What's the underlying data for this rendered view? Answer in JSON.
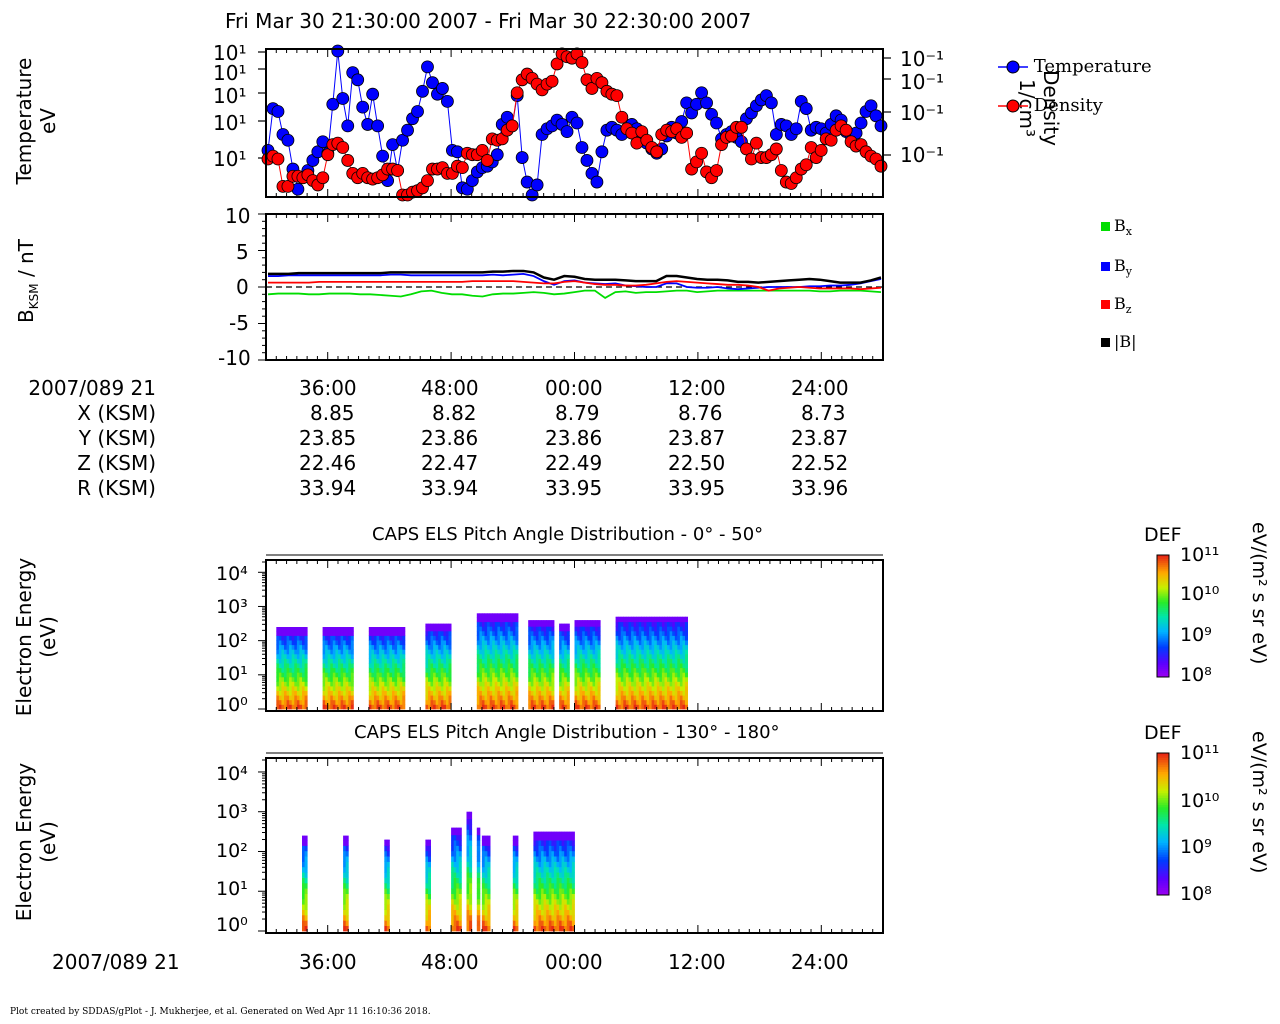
{
  "title": "Fri Mar 30 21:30:00 2007 - Fri Mar 30 22:30:00 2007",
  "footer": "Plot created by SDDAS/gPlot - J. Mukherjee, et al.  Generated on Wed Apr 11 16:10:36 2018.",
  "panel1": {
    "ylabel_line1": "Temperature",
    "ylabel_line2": "eV",
    "y2label_line1": "Density",
    "y2label_line2": "1/cm³",
    "left_ticks": [
      "10¹",
      "10¹",
      "10¹",
      "10¹",
      "10¹"
    ],
    "right_ticks": [
      "10⁻¹",
      "10⁻¹",
      "10⁻¹",
      "10⁻¹"
    ],
    "legend": [
      {
        "name": "Temperature",
        "color": "#0000ff"
      },
      {
        "name": "Density",
        "color": "#ff0000"
      }
    ]
  },
  "panel2": {
    "ylabel": "B",
    "ylabel_sub": "KSM",
    "ylabel_suffix": " / nT",
    "ticks": [
      "10",
      "5",
      "0",
      "-5",
      "-10"
    ],
    "legend": [
      {
        "name": "B",
        "sub": "x",
        "color": "#00dd00"
      },
      {
        "name": "B",
        "sub": "y",
        "color": "#0000ff"
      },
      {
        "name": "B",
        "sub": "z",
        "color": "#ff0000"
      },
      {
        "name": "|B|",
        "sub": "",
        "color": "#000000"
      }
    ]
  },
  "ephemeris": {
    "row_labels": [
      "2007/089 21",
      "X (KSM)",
      "Y (KSM)",
      "Z (KSM)",
      "R (KSM)"
    ],
    "times": [
      "36:00",
      "48:00",
      "00:00",
      "12:00",
      "24:00"
    ],
    "X": [
      "8.85",
      "8.82",
      "8.79",
      "8.76",
      "8.73"
    ],
    "Y": [
      "23.85",
      "23.86",
      "23.86",
      "23.87",
      "23.87"
    ],
    "Z": [
      "22.46",
      "22.47",
      "22.49",
      "22.50",
      "22.52"
    ],
    "R": [
      "33.94",
      "33.94",
      "33.95",
      "33.95",
      "33.96"
    ]
  },
  "spec1": {
    "title": "CAPS ELS Pitch Angle Distribution - 0° - 50°",
    "ylabel_line1": "Electron Energy",
    "ylabel_line2": "(eV)",
    "ticks": [
      "10⁴",
      "10³",
      "10²",
      "10¹",
      "10⁰"
    ]
  },
  "spec2": {
    "title": "CAPS ELS Pitch Angle Distribution - 130° - 180°",
    "ylabel_line1": "Electron Energy",
    "ylabel_line2": "(eV)",
    "ticks": [
      "10⁴",
      "10³",
      "10²",
      "10¹",
      "10⁰"
    ]
  },
  "colorbar": {
    "title": "DEF",
    "units": "eV/(m² s sr eV)",
    "ticks": [
      "10¹¹",
      "10¹⁰",
      "10⁹",
      "10⁸"
    ]
  },
  "bottom_axis": {
    "row_label": "2007/089 21",
    "times": [
      "36:00",
      "48:00",
      "00:00",
      "12:00",
      "24:00"
    ]
  },
  "chart_data": [
    {
      "type": "line",
      "title": "",
      "xlabel": "",
      "ylabel": "Temperature eV",
      "y2label": "Density 1/cm³",
      "x_axis": "time, Fri Mar 30 2007, 21:30:00 - 22:30:00 (one point per minute)",
      "series": [
        {
          "name": "Temperature",
          "axis": "left",
          "color": "#0000ff",
          "values": [
            0.31,
            0.6,
            0.58,
            0.42,
            0.38,
            0.18,
            0.04,
            0.12,
            0.17,
            0.24,
            0.3,
            0.37,
            0.29,
            0.63,
            1.0,
            0.67,
            0.48,
            0.85,
            0.8,
            0.61,
            0.49,
            0.7,
            0.48,
            0.27,
            0.1,
            0.35,
            0.17,
            0.38,
            0.45,
            0.53,
            0.58,
            0.72,
            0.89,
            0.78,
            0.7,
            0.74,
            0.65,
            0.31,
            0.3,
            0.05,
            0.04,
            0.1,
            0.16,
            0.19,
            0.2,
            0.23,
            0.28,
            0.49,
            0.54,
            0.48,
            0.69,
            0.26,
            0.09,
            0.0,
            0.07,
            0.42,
            0.46,
            0.48,
            0.52,
            0.49,
            0.44,
            0.54,
            0.5,
            0.33,
            0.24,
            0.15,
            0.09,
            0.3,
            0.45,
            0.47,
            0.45,
            0.42,
            0.46,
            0.49,
            0.46,
            0.43,
            0.36,
            0.32,
            0.29,
            0.32,
            0.41,
            0.47,
            0.43,
            0.51,
            0.64,
            0.57,
            0.63,
            0.71,
            0.64,
            0.56,
            0.5,
            0.39,
            0.42,
            0.44,
            0.4,
            0.37,
            0.53,
            0.57,
            0.62,
            0.66,
            0.69,
            0.64,
            0.42,
            0.49,
            0.48,
            0.42,
            0.46,
            0.65,
            0.6,
            0.45,
            0.47,
            0.46,
            0.43,
            0.49,
            0.55,
            0.52,
            0.44,
            0.41,
            0.43,
            0.5,
            0.58,
            0.62,
            0.55,
            0.48
          ]
        },
        {
          "name": "Density",
          "axis": "right",
          "color": "#ff0000",
          "values": [
            0.25,
            0.27,
            0.25,
            0.06,
            0.06,
            0.13,
            0.13,
            0.12,
            0.14,
            0.1,
            0.07,
            0.12,
            0.28,
            0.35,
            0.36,
            0.33,
            0.24,
            0.15,
            0.12,
            0.15,
            0.12,
            0.11,
            0.12,
            0.14,
            0.18,
            0.18,
            0.17,
            0.0,
            0.0,
            0.02,
            0.03,
            0.05,
            0.1,
            0.18,
            0.18,
            0.19,
            0.15,
            0.15,
            0.2,
            0.19,
            0.29,
            0.28,
            0.28,
            0.31,
            0.24,
            0.39,
            0.38,
            0.39,
            0.45,
            0.48,
            0.71,
            0.8,
            0.84,
            0.81,
            0.77,
            0.73,
            0.77,
            0.79,
            0.91,
            0.98,
            0.96,
            0.95,
            0.98,
            0.92,
            0.8,
            0.74,
            0.81,
            0.78,
            0.72,
            0.7,
            0.69,
            0.54,
            0.46,
            0.43,
            0.36,
            0.44,
            0.38,
            0.33,
            0.3,
            0.42,
            0.45,
            0.44,
            0.46,
            0.4,
            0.43,
            0.18,
            0.23,
            0.29,
            0.16,
            0.12,
            0.17,
            0.35,
            0.4,
            0.41,
            0.47,
            0.47,
            0.32,
            0.25,
            0.36,
            0.26,
            0.26,
            0.28,
            0.32,
            0.17,
            0.09,
            0.08,
            0.12,
            0.18,
            0.21,
            0.33,
            0.26,
            0.31,
            0.39,
            0.38,
            0.45,
            0.48,
            0.45,
            0.37,
            0.34,
            0.35,
            0.3,
            0.27,
            0.25,
            0.2
          ]
        }
      ]
    },
    {
      "type": "line",
      "title": "",
      "xlabel": "",
      "ylabel": "B_KSM / nT",
      "ylim": [
        -10,
        10
      ],
      "x_axis": "time, Fri Mar 30 2007, 21:30:00 - 22:30:00",
      "series": [
        {
          "name": "Bx",
          "color": "#00dd00",
          "values": [
            -1.0,
            -0.9,
            -0.9,
            -0.9,
            -1.0,
            -1.0,
            -0.9,
            -0.9,
            -0.9,
            -1.0,
            -1.0,
            -1.1,
            -1.2,
            -1.3,
            -1.0,
            -0.6,
            -0.5,
            -0.8,
            -1.0,
            -1.0,
            -1.2,
            -1.3,
            -1.0,
            -0.9,
            -0.9,
            -0.8,
            -0.7,
            -0.8,
            -1.0,
            -0.9,
            -0.7,
            -0.5,
            -0.5,
            -1.5,
            -0.7,
            -0.6,
            -0.8,
            -0.7,
            -0.7,
            -0.6,
            -0.5,
            -0.5,
            -0.7,
            -0.6,
            -0.5,
            -0.5,
            -0.5,
            -0.5,
            -0.5,
            -0.5,
            -0.5,
            -0.5,
            -0.5,
            -0.5,
            -0.6,
            -0.6,
            -0.5,
            -0.5,
            -0.5,
            -0.6,
            -0.7
          ]
        },
        {
          "name": "By",
          "color": "#0000ff",
          "values": [
            1.5,
            1.5,
            1.6,
            1.6,
            1.6,
            1.6,
            1.6,
            1.6,
            1.6,
            1.6,
            1.6,
            1.6,
            1.7,
            1.7,
            1.6,
            1.6,
            1.6,
            1.6,
            1.6,
            1.6,
            1.6,
            1.6,
            1.7,
            1.6,
            1.7,
            1.8,
            1.5,
            0.8,
            0.3,
            0.8,
            0.9,
            0.6,
            0.5,
            0.4,
            0.5,
            0.2,
            0.1,
            0.0,
            0.0,
            0.5,
            0.5,
            0.0,
            -0.1,
            -0.1,
            0.0,
            -0.2,
            -0.3,
            -0.2,
            -0.1,
            0.0,
            0.0,
            0.0,
            0.0,
            0.1,
            0.1,
            0.2,
            0.2,
            0.3,
            0.5,
            0.8,
            1.1
          ]
        },
        {
          "name": "Bz",
          "color": "#ff0000",
          "values": [
            0.6,
            0.6,
            0.6,
            0.6,
            0.6,
            0.7,
            0.7,
            0.7,
            0.7,
            0.7,
            0.7,
            0.7,
            0.7,
            0.7,
            0.7,
            0.7,
            0.7,
            0.7,
            0.7,
            0.7,
            0.8,
            0.8,
            0.8,
            0.8,
            0.8,
            0.7,
            0.6,
            0.5,
            0.5,
            0.7,
            0.8,
            0.6,
            0.4,
            0.3,
            0.3,
            0.2,
            0.2,
            0.3,
            0.5,
            0.7,
            0.8,
            0.7,
            0.6,
            0.5,
            0.4,
            0.3,
            0.3,
            0.2,
            0.0,
            -0.5,
            -0.2,
            -0.1,
            0.0,
            -0.1,
            -0.2,
            -0.2,
            -0.2,
            -0.2,
            -0.3,
            -0.2,
            -0.1
          ]
        },
        {
          "name": "|B|",
          "color": "#000000",
          "values": [
            1.8,
            1.8,
            1.8,
            1.9,
            1.9,
            1.9,
            1.9,
            1.9,
            1.9,
            1.9,
            1.9,
            1.9,
            2.0,
            2.0,
            2.0,
            2.0,
            2.0,
            2.0,
            2.0,
            2.0,
            2.0,
            2.0,
            2.1,
            2.1,
            2.2,
            2.2,
            2.0,
            1.3,
            1.0,
            1.5,
            1.4,
            1.1,
            1.0,
            1.0,
            1.0,
            0.9,
            0.8,
            0.8,
            0.8,
            1.5,
            1.5,
            1.3,
            1.1,
            1.0,
            1.0,
            0.9,
            0.7,
            0.7,
            0.6,
            0.7,
            0.8,
            0.9,
            1.0,
            1.1,
            1.0,
            0.8,
            0.6,
            0.6,
            0.6,
            0.9,
            1.3
          ]
        }
      ]
    },
    {
      "type": "heatmap",
      "title": "CAPS ELS Pitch Angle Distribution - 0° - 50°",
      "ylabel": "Electron Energy (eV)",
      "y_scale": "log",
      "ylim": [
        1,
        20000
      ],
      "colorbar": {
        "label": "DEF eV/(m² s sr eV)",
        "range": [
          100000000.0,
          100000000000.0
        ],
        "scale": "log"
      },
      "x_axis": "time, Fri Mar 30 2007, 21:30:00 - 22:30:00",
      "data_intervals": [
        [
          31.0,
          34.0
        ],
        [
          35.5,
          38.5
        ],
        [
          40.0,
          43.5
        ],
        [
          45.5,
          48.0
        ],
        [
          50.5,
          54.5
        ],
        [
          55.5,
          58.0
        ],
        [
          58.5,
          59.5
        ],
        [
          60.0,
          62.5
        ],
        [
          64.0,
          71.0
        ]
      ],
      "upper_energy_log10_per_interval": [
        2.4,
        2.4,
        2.4,
        2.5,
        2.8,
        2.6,
        2.5,
        2.6,
        2.7
      ]
    },
    {
      "type": "heatmap",
      "title": "CAPS ELS Pitch Angle Distribution - 130° - 180°",
      "ylabel": "Electron Energy (eV)",
      "y_scale": "log",
      "ylim": [
        1,
        20000
      ],
      "colorbar": {
        "label": "DEF eV/(m² s sr eV)",
        "range": [
          100000000.0,
          100000000000.0
        ],
        "scale": "log"
      },
      "x_axis": "time, Fri Mar 30 2007, 21:30:00 - 22:30:00",
      "data_intervals": [
        [
          33.5,
          34.0
        ],
        [
          37.5,
          38.0
        ],
        [
          41.5,
          42.0
        ],
        [
          45.5,
          46.0
        ],
        [
          48.0,
          49.0
        ],
        [
          49.5,
          50.0
        ],
        [
          50.5,
          50.8
        ],
        [
          51.0,
          51.8
        ],
        [
          54.0,
          54.5
        ],
        [
          56.0,
          60.0
        ]
      ],
      "upper_energy_log10_per_interval": [
        2.4,
        2.4,
        2.3,
        2.3,
        2.6,
        3.0,
        2.6,
        2.4,
        2.4,
        2.5
      ]
    }
  ]
}
